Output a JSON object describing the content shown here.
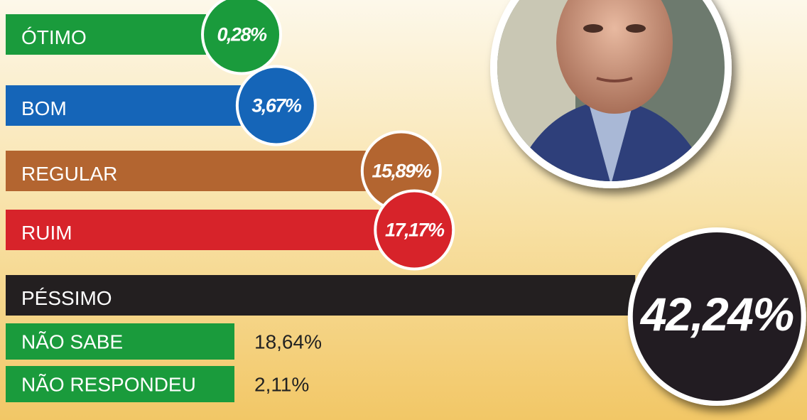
{
  "chart_data": {
    "type": "bar",
    "categories": [
      "ÓTIMO",
      "BOM",
      "REGULAR",
      "RUIM",
      "PÉSSIMO"
    ],
    "values": [
      0.28,
      3.67,
      15.89,
      17.17,
      42.24
    ],
    "value_labels": [
      "0,28%",
      "3,67%",
      "15,89%",
      "17,17%",
      "42,24%"
    ],
    "colors": [
      "#1a9b3c",
      "#1565b8",
      "#b36530",
      "#d7232a",
      "#231f20"
    ],
    "other": {
      "categories": [
        "NÃO SABE",
        "NÃO RESPONDEU"
      ],
      "values": [
        18.64,
        2.11
      ],
      "value_labels": [
        "18,64%",
        "2,11%"
      ],
      "color": "#1a9b3c"
    }
  }
}
